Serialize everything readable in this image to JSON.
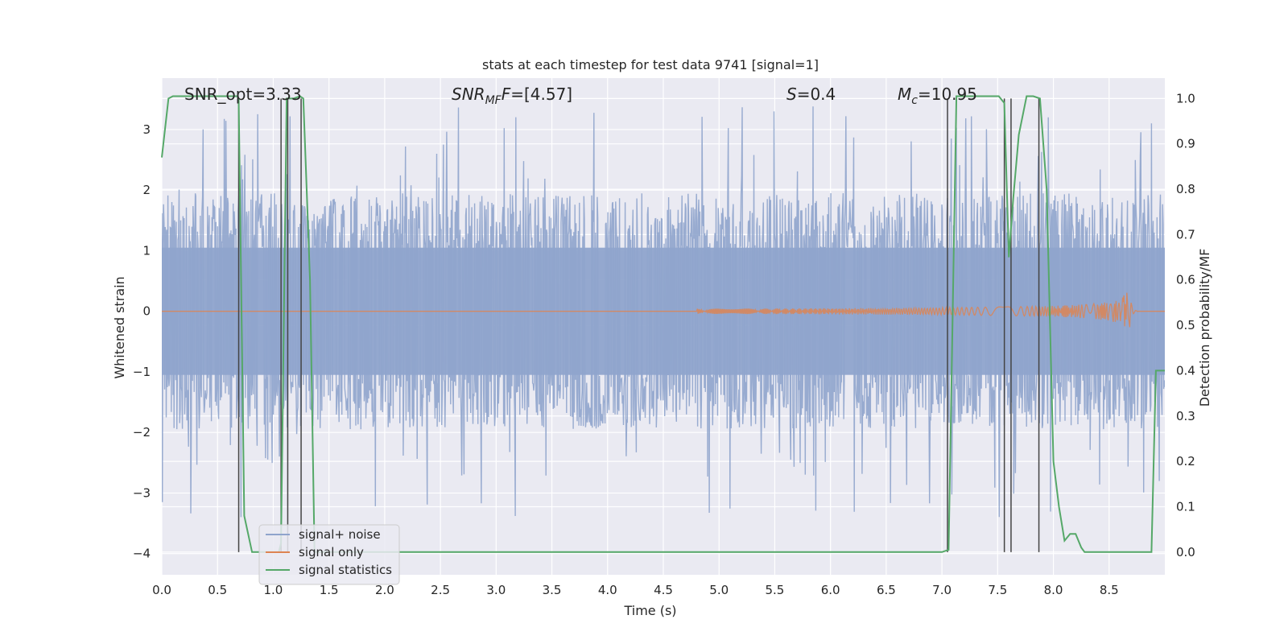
{
  "chart_data": {
    "type": "line",
    "title": "stats at each timestep for test data 9741 [signal=1]",
    "xlabel": "Time (s)",
    "ylabel_left": "Whitened strain",
    "ylabel_right": "Detection probability/MF",
    "xlim": [
      0.0,
      9.0
    ],
    "ylim_left": [
      -4.35,
      3.85
    ],
    "ylim_right": [
      -0.05,
      1.045
    ],
    "x_ticks": [
      "0.0",
      "0.5",
      "1.0",
      "1.5",
      "2.0",
      "2.5",
      "3.0",
      "3.5",
      "4.0",
      "4.5",
      "5.0",
      "5.5",
      "6.0",
      "6.5",
      "7.0",
      "7.5",
      "8.0",
      "8.5"
    ],
    "y_ticks_left": [
      "−4",
      "−3",
      "−2",
      "−1",
      "0",
      "1",
      "2",
      "3"
    ],
    "y_ticks_right": [
      "0.0",
      "0.1",
      "0.2",
      "0.3",
      "0.4",
      "0.5",
      "0.6",
      "0.7",
      "0.8",
      "0.9",
      "1.0"
    ],
    "annotations": {
      "snr_opt": "SNR_opt=3.33",
      "snr_mf_main": "SNR",
      "snr_mf_sub": "MF",
      "snr_mf_rest": "=[4.57]",
      "s_main": "S",
      "s_rest": "=0.4",
      "mc_main": "M",
      "mc_sub": "c",
      "mc_rest": "=10.95"
    },
    "legend": {
      "placement": "lower-left",
      "entries": [
        "signal+ noise",
        "signal only",
        "signal statistics"
      ]
    },
    "colors": {
      "noise": "#8fa4cc",
      "signal": "#dd8452",
      "stats": "#55a868",
      "vlines": "#444444",
      "background": "#eaeaf2",
      "grid": "#ffffff"
    },
    "noise_series": {
      "name": "signal+ noise",
      "description_band": [
        -1.9,
        1.9
      ],
      "max_spike": 3.6,
      "min_spike": -4.0
    },
    "signal_series": {
      "name": "signal only",
      "chirp_start": 4.8,
      "merger_time": 8.68,
      "peak_amplitude": 0.45
    },
    "stats_series": {
      "name": "signal statistics",
      "x": [
        0.0,
        0.06,
        0.1,
        0.2,
        0.4,
        0.6,
        0.68,
        0.69,
        0.74,
        0.81,
        0.9,
        1.0,
        1.05,
        1.07,
        1.12,
        1.18,
        1.24,
        1.27,
        1.33,
        1.37,
        1.4,
        2.0,
        3.0,
        4.0,
        5.0,
        6.0,
        7.0,
        7.06,
        7.13,
        7.2,
        7.4,
        7.51,
        7.56,
        7.6,
        7.64,
        7.69,
        7.76,
        7.82,
        7.88,
        7.94,
        8.0,
        8.05,
        8.1,
        8.15,
        8.2,
        8.25,
        8.28,
        8.33,
        8.4,
        8.6,
        8.88,
        8.92,
        9.0
      ],
      "y": [
        0.87,
        1.0,
        1.005,
        1.005,
        1.005,
        1.005,
        1.005,
        1.0,
        0.08,
        0.0,
        0.0,
        0.0,
        0.0,
        0.02,
        1.0,
        1.0,
        1.005,
        1.0,
        0.6,
        0.0,
        0.0,
        0.0,
        0.0,
        0.0,
        0.0,
        0.0,
        0.0,
        0.005,
        1.005,
        1.005,
        1.005,
        1.005,
        0.99,
        0.65,
        0.78,
        0.92,
        1.005,
        1.005,
        1.0,
        0.8,
        0.2,
        0.1,
        0.025,
        0.04,
        0.04,
        0.01,
        0.0,
        0.0,
        0.0,
        0.0,
        0.0,
        0.4,
        0.4
      ]
    },
    "vertical_lines": {
      "x": [
        0.69,
        1.07,
        1.13,
        1.25,
        7.05,
        7.56,
        7.62,
        7.87
      ],
      "y_range": [
        0.0,
        1.0
      ]
    },
    "grid": true
  }
}
